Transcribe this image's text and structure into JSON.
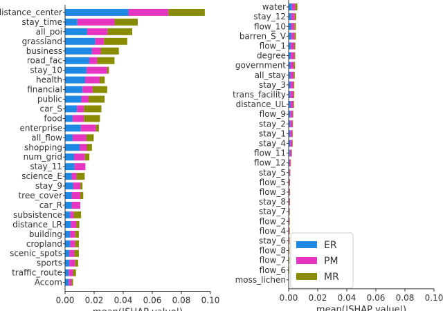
{
  "chart_data": [
    {
      "type": "bar",
      "stacked": true,
      "orientation": "horizontal",
      "xlabel": "mean(|SHAP value|)",
      "ylabel": "",
      "xlim": [
        0,
        0.1
      ],
      "xticks": [
        "0.00",
        "0.02",
        "0.04",
        "0.06",
        "0.08",
        "0.10"
      ],
      "grid": false,
      "categories": [
        "distance_center",
        "stay_time",
        "all_poi",
        "grassland",
        "business",
        "road_fac",
        "stay_10",
        "health",
        "financial",
        "public",
        "car_S",
        "food",
        "enterprise",
        "all_flow",
        "shopping",
        "num_grid",
        "stay_11",
        "science_E",
        "stay_9",
        "tree_cover",
        "car_R",
        "subsistence",
        "distance_LR",
        "building",
        "cropland",
        "scenic_spots",
        "sports",
        "traffic_route",
        "Accom"
      ],
      "series": [
        {
          "name": "ER",
          "color": "#1E88E5",
          "values": [
            0.0436,
            0.0085,
            0.0152,
            0.0208,
            0.0185,
            0.0167,
            0.0148,
            0.0138,
            0.012,
            0.0112,
            0.0082,
            0.0052,
            0.0108,
            0.0052,
            0.01,
            0.0062,
            0.0065,
            0.0045,
            0.0055,
            0.0045,
            0.0045,
            0.0035,
            0.004,
            0.0035,
            0.0035,
            0.003,
            0.003,
            0.0025,
            0.0025
          ]
        },
        {
          "name": "PM",
          "color": "#E635C0",
          "values": [
            0.0275,
            0.0255,
            0.014,
            0.006,
            0.006,
            0.0055,
            0.0142,
            0.01,
            0.007,
            0.005,
            0.0048,
            0.0078,
            0.0105,
            0.0095,
            0.005,
            0.0075,
            0.0075,
            0.0035,
            0.005,
            0.006,
            0.006,
            0.0025,
            0.0038,
            0.0035,
            0.0035,
            0.0035,
            0.004,
            0.003,
            0.002
          ]
        },
        {
          "name": "MR",
          "color": "#8A8C00",
          "values": [
            0.025,
            0.016,
            0.017,
            0.016,
            0.0125,
            0.0118,
            0.0012,
            0.0035,
            0.01,
            0.011,
            0.012,
            0.011,
            0.002,
            0.005,
            0.0035,
            0.003,
            0.0,
            0.0055,
            0.0015,
            0.002,
            0.0,
            0.005,
            0.002,
            0.0025,
            0.0025,
            0.003,
            0.002,
            0.002,
            0.001
          ]
        }
      ]
    },
    {
      "type": "bar",
      "stacked": true,
      "orientation": "horizontal",
      "xlabel": "mean(|SHAP value|)",
      "ylabel": "",
      "xlim": [
        0,
        0.1
      ],
      "xticks": [
        "0.00",
        "0.02",
        "0.04",
        "0.06",
        "0.08",
        "0.10"
      ],
      "grid": false,
      "legend": {
        "position": "bottom-right",
        "entries": [
          "ER",
          "PM",
          "MR"
        ]
      },
      "categories": [
        "water",
        "stay_12",
        "flow_10",
        "barren_S_V",
        "flow_1",
        "degree",
        "government",
        "all_stay",
        "stay_3",
        "trans_facility",
        "distance_UL",
        "flow_9",
        "stay_2",
        "stay_1",
        "stay_4",
        "flow_11",
        "flow_12",
        "stay_5",
        "flow_5",
        "flow_3",
        "stay_8",
        "stay_7",
        "flow_2",
        "flow_4",
        "stay_6",
        "flow_8",
        "flow_7",
        "flow_6",
        "moss_lichen"
      ],
      "series": [
        {
          "name": "ER",
          "color": "#1E88E5",
          "values": [
            0.0022,
            0.0018,
            0.0017,
            0.0018,
            0.0014,
            0.0014,
            0.0012,
            0.0012,
            0.0012,
            0.0011,
            0.0012,
            0.0011,
            0.001,
            0.001,
            0.001,
            0.0008,
            0.0005,
            0.0004,
            0.0003,
            0.0003,
            0.0003,
            0.0003,
            0.0002,
            0.0002,
            0.0002,
            0.0001,
            0.0001,
            0.0001,
            0.0
          ]
        },
        {
          "name": "PM",
          "color": "#E635C0",
          "values": [
            0.0024,
            0.0024,
            0.0022,
            0.0022,
            0.0024,
            0.0024,
            0.0023,
            0.0022,
            0.0021,
            0.0022,
            0.0019,
            0.0017,
            0.0016,
            0.0015,
            0.0014,
            0.0012,
            0.0008,
            0.0005,
            0.0004,
            0.0004,
            0.0004,
            0.0003,
            0.0003,
            0.0003,
            0.0002,
            0.0002,
            0.0002,
            0.0001,
            0.0
          ]
        },
        {
          "name": "MR",
          "color": "#8A8C00",
          "values": [
            0.0014,
            0.001,
            0.0011,
            0.001,
            0.0008,
            0.0007,
            0.0009,
            0.0008,
            0.0006,
            0.0006,
            0.0006,
            0.0004,
            0.0004,
            0.0004,
            0.0004,
            0.0003,
            0.0002,
            0.0002,
            0.0001,
            0.0001,
            0.0001,
            0.0001,
            0.0001,
            0.0001,
            0.0001,
            0.0001,
            0.0001,
            0.0001,
            0.0
          ]
        }
      ]
    }
  ]
}
